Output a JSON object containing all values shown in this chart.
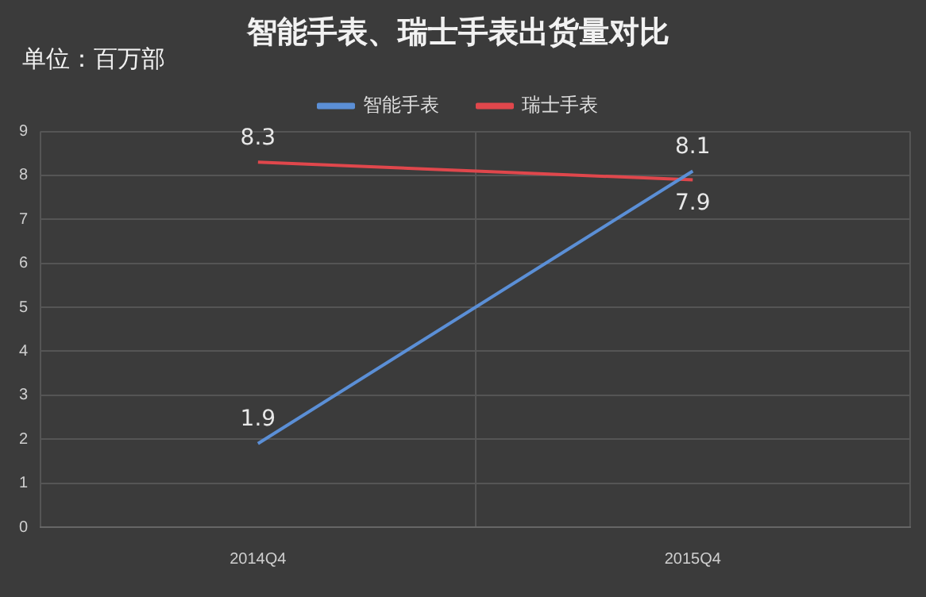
{
  "chart_data": {
    "type": "line",
    "title": "智能手表、瑞士手表出货量对比",
    "annotations": [
      "单位：百万部"
    ],
    "categories": [
      "2014Q4",
      "2015Q4"
    ],
    "series": [
      {
        "name": "智能手表",
        "color": "#5b8fd6",
        "values": [
          1.9,
          8.1
        ]
      },
      {
        "name": "瑞士手表",
        "color": "#e0474c",
        "values": [
          8.3,
          7.9
        ]
      }
    ],
    "ylim": [
      0,
      9
    ],
    "yticks": [
      0,
      1,
      2,
      3,
      4,
      5,
      6,
      7,
      8,
      9
    ],
    "grid": true,
    "legend": "top",
    "data_labels": true,
    "marker": "none",
    "line_style": "solid"
  }
}
